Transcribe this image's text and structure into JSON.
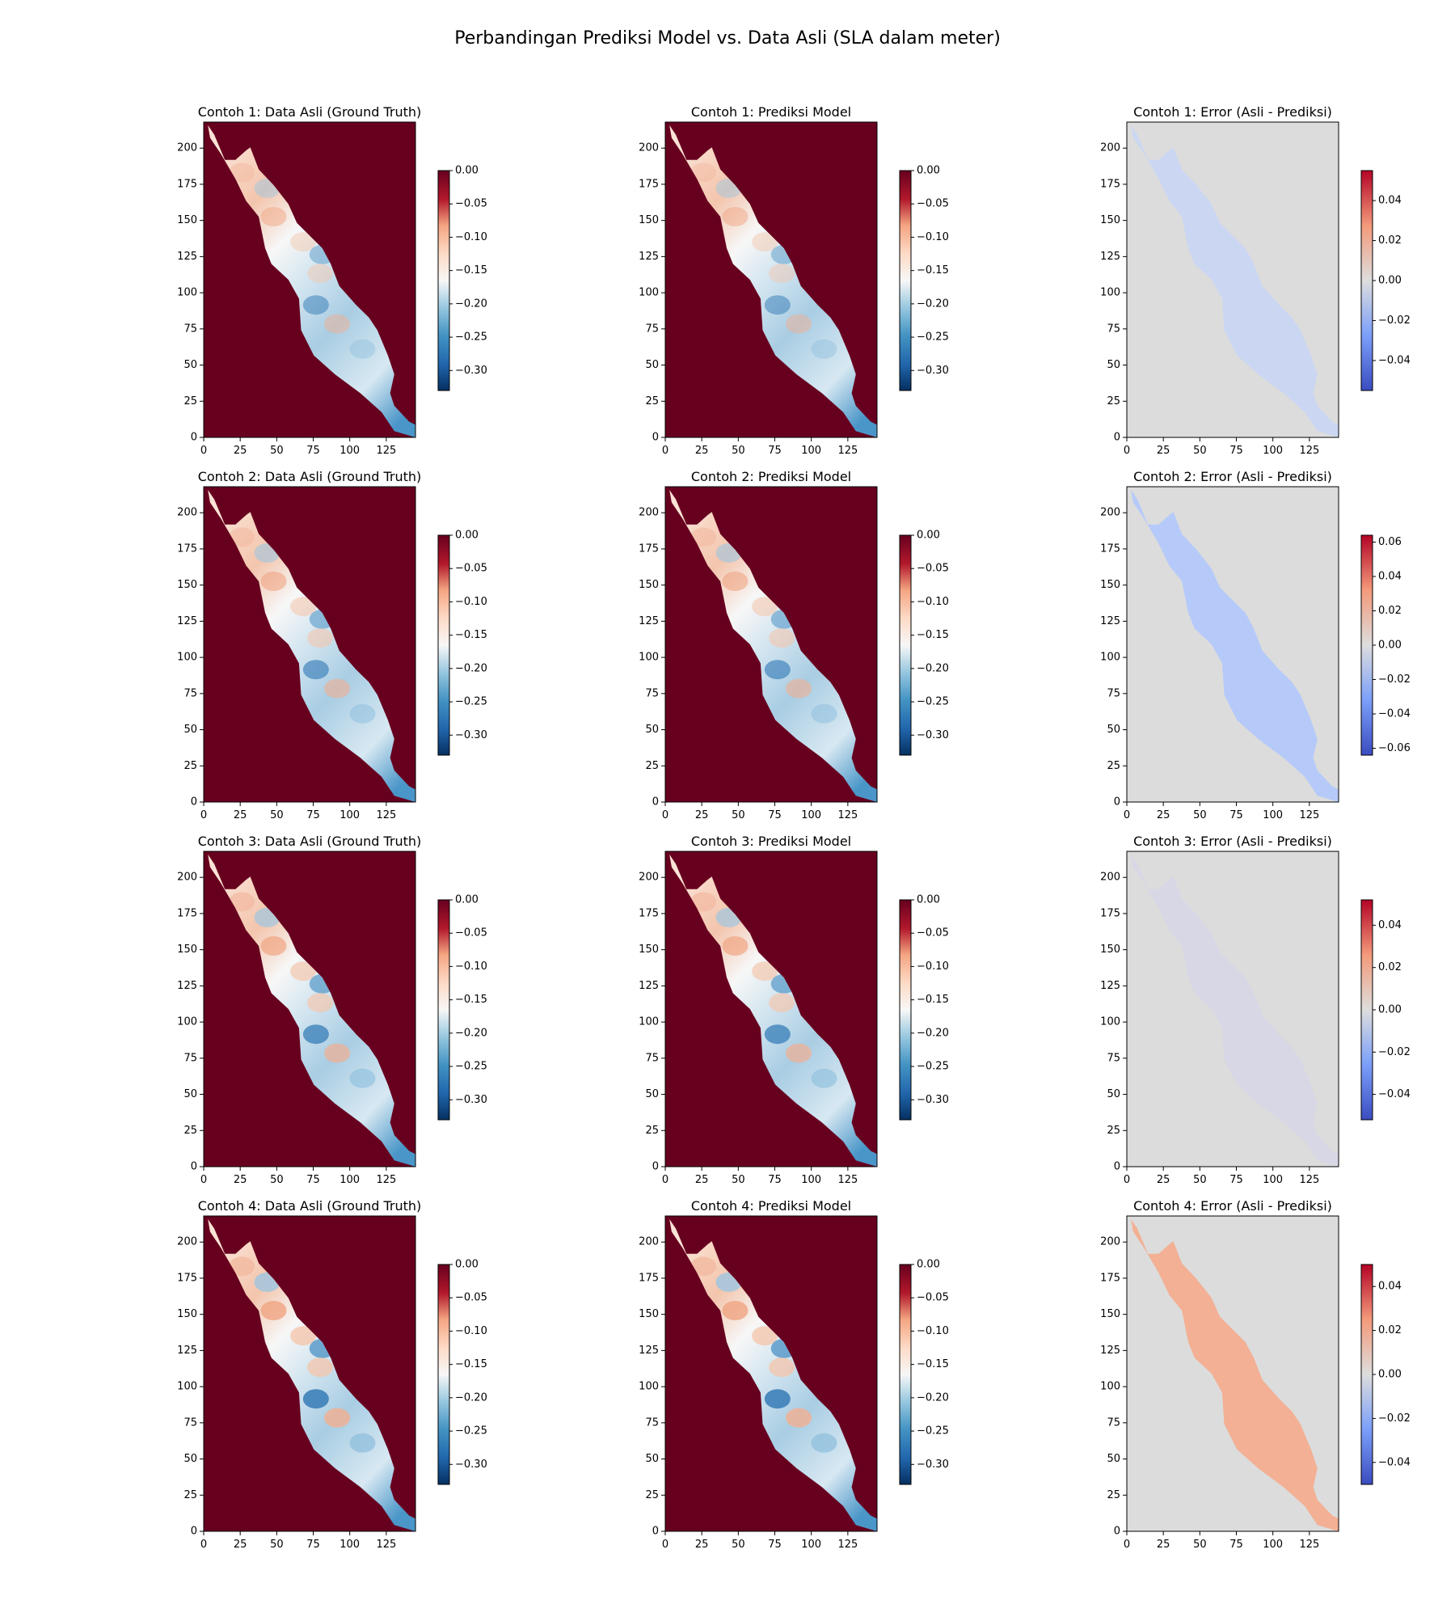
{
  "figure": {
    "suptitle": "Perbandingan Prediksi Model vs. Data Asli (SLA dalam meter)"
  },
  "chart_data": {
    "type": "heatmap",
    "title": "Perbandingan Prediksi Model vs. Data Asli (SLA dalam meter)",
    "grid": false,
    "layout": "4 rows x 3 columns",
    "x_ticks": [
      0,
      25,
      50,
      75,
      100,
      125
    ],
    "y_ticks": [
      0,
      25,
      50,
      75,
      100,
      125,
      150,
      175,
      200
    ],
    "xlim": [
      0,
      145
    ],
    "ylim": [
      0,
      218
    ],
    "colormaps": {
      "data": "RdBu_r",
      "error": "coolwarm"
    },
    "panels": [
      {
        "title": "Contoh 1: Data Asli (Ground Truth)",
        "kind": "data",
        "clim": [
          -0.33,
          0.0
        ],
        "cbar_ticks": [
          0.0,
          -0.05,
          -0.1,
          -0.15,
          -0.2,
          -0.25,
          -0.3
        ],
        "cbar_labels": [
          "0.00",
          "−0.05",
          "−0.10",
          "−0.15",
          "−0.20",
          "−0.25",
          "−0.30"
        ]
      },
      {
        "title": "Contoh 1: Prediksi Model",
        "kind": "data",
        "clim": [
          -0.33,
          0.0
        ],
        "cbar_ticks": [
          0.0,
          -0.05,
          -0.1,
          -0.15,
          -0.2,
          -0.25,
          -0.3
        ],
        "cbar_labels": [
          "0.00",
          "−0.05",
          "−0.10",
          "−0.15",
          "−0.20",
          "−0.25",
          "−0.30"
        ]
      },
      {
        "title": "Contoh 1: Error (Asli - Prediksi)",
        "kind": "error",
        "clim": [
          -0.055,
          0.055
        ],
        "cbar_ticks": [
          0.04,
          0.02,
          0.0,
          -0.02,
          -0.04
        ],
        "cbar_labels": [
          "0.04",
          "0.02",
          "0.00",
          "−0.02",
          "−0.04"
        ]
      },
      {
        "title": "Contoh 2: Data Asli (Ground Truth)",
        "kind": "data",
        "clim": [
          -0.33,
          0.0
        ],
        "cbar_ticks": [
          0.0,
          -0.05,
          -0.1,
          -0.15,
          -0.2,
          -0.25,
          -0.3
        ],
        "cbar_labels": [
          "0.00",
          "−0.05",
          "−0.10",
          "−0.15",
          "−0.20",
          "−0.25",
          "−0.30"
        ]
      },
      {
        "title": "Contoh 2: Prediksi Model",
        "kind": "data",
        "clim": [
          -0.33,
          0.0
        ],
        "cbar_ticks": [
          0.0,
          -0.05,
          -0.1,
          -0.15,
          -0.2,
          -0.25,
          -0.3
        ],
        "cbar_labels": [
          "0.00",
          "−0.05",
          "−0.10",
          "−0.15",
          "−0.20",
          "−0.25",
          "−0.30"
        ]
      },
      {
        "title": "Contoh 2: Error (Asli - Prediksi)",
        "kind": "error",
        "clim": [
          -0.064,
          0.064
        ],
        "cbar_ticks": [
          0.06,
          0.04,
          0.02,
          0.0,
          -0.02,
          -0.04,
          -0.06
        ],
        "cbar_labels": [
          "0.06",
          "0.04",
          "0.02",
          "0.00",
          "−0.02",
          "−0.04",
          "−0.06"
        ]
      },
      {
        "title": "Contoh 3: Data Asli (Ground Truth)",
        "kind": "data",
        "clim": [
          -0.33,
          0.0
        ],
        "cbar_ticks": [
          0.0,
          -0.05,
          -0.1,
          -0.15,
          -0.2,
          -0.25,
          -0.3
        ],
        "cbar_labels": [
          "0.00",
          "−0.05",
          "−0.10",
          "−0.15",
          "−0.20",
          "−0.25",
          "−0.30"
        ]
      },
      {
        "title": "Contoh 3: Prediksi Model",
        "kind": "data",
        "clim": [
          -0.33,
          0.0
        ],
        "cbar_ticks": [
          0.0,
          -0.05,
          -0.1,
          -0.15,
          -0.2,
          -0.25,
          -0.3
        ],
        "cbar_labels": [
          "0.00",
          "−0.05",
          "−0.10",
          "−0.15",
          "−0.20",
          "−0.25",
          "−0.30"
        ]
      },
      {
        "title": "Contoh 3: Error (Asli - Prediksi)",
        "kind": "error",
        "clim": [
          -0.052,
          0.052
        ],
        "cbar_ticks": [
          0.04,
          0.02,
          0.0,
          -0.02,
          -0.04
        ],
        "cbar_labels": [
          "0.04",
          "0.02",
          "0.00",
          "−0.02",
          "−0.04"
        ]
      },
      {
        "title": "Contoh 4: Data Asli (Ground Truth)",
        "kind": "data",
        "clim": [
          -0.33,
          0.0
        ],
        "cbar_ticks": [
          0.0,
          -0.05,
          -0.1,
          -0.15,
          -0.2,
          -0.25,
          -0.3
        ],
        "cbar_labels": [
          "0.00",
          "−0.05",
          "−0.10",
          "−0.15",
          "−0.20",
          "−0.25",
          "−0.30"
        ]
      },
      {
        "title": "Contoh 4: Prediksi Model",
        "kind": "data",
        "clim": [
          -0.33,
          0.0
        ],
        "cbar_ticks": [
          0.0,
          -0.05,
          -0.1,
          -0.15,
          -0.2,
          -0.25,
          -0.3
        ],
        "cbar_labels": [
          "0.00",
          "−0.05",
          "−0.10",
          "−0.15",
          "−0.20",
          "−0.25",
          "−0.30"
        ]
      },
      {
        "title": "Contoh 4: Error (Asli - Prediksi)",
        "kind": "error",
        "clim": [
          -0.05,
          0.05
        ],
        "cbar_ticks": [
          0.04,
          0.02,
          0.0,
          -0.02,
          -0.04
        ],
        "cbar_labels": [
          "0.04",
          "0.02",
          "0.00",
          "−0.02",
          "−0.04"
        ]
      }
    ]
  }
}
